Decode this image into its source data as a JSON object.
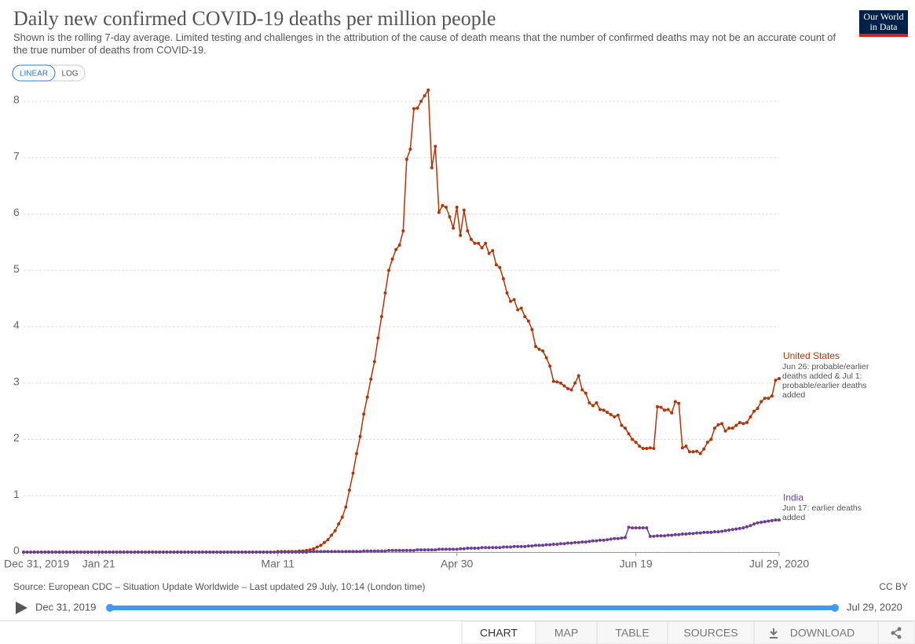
{
  "chart_data": {
    "type": "line",
    "title": "Daily new confirmed COVID-19 deaths per million people",
    "subtitle": "Shown is the rolling 7-day average. Limited testing and challenges in the attribution of the cause of death means that the number of confirmed deaths may not be an accurate count of the true number of deaths from COVID-19.",
    "source": "Source: European CDC – Situation Update Worldwide – Last updated 29 July, 10:14 (London time)",
    "license": "CC BY",
    "scale_buttons": [
      "LINEAR",
      "LOG"
    ],
    "log_scale": false,
    "grid": true,
    "x": [
      "2019-12-31",
      "2020-01-01",
      "2020-01-02",
      "2020-01-03",
      "2020-01-04",
      "2020-01-05",
      "2020-01-06",
      "2020-01-07",
      "2020-01-08",
      "2020-01-09",
      "2020-01-10",
      "2020-01-11",
      "2020-01-12",
      "2020-01-13",
      "2020-01-14",
      "2020-01-15",
      "2020-01-16",
      "2020-01-17",
      "2020-01-18",
      "2020-01-19",
      "2020-01-20",
      "2020-01-21",
      "2020-01-22",
      "2020-01-23",
      "2020-01-24",
      "2020-01-25",
      "2020-01-26",
      "2020-01-27",
      "2020-01-28",
      "2020-01-29",
      "2020-01-30",
      "2020-01-31",
      "2020-02-01",
      "2020-02-02",
      "2020-02-03",
      "2020-02-04",
      "2020-02-05",
      "2020-02-06",
      "2020-02-07",
      "2020-02-08",
      "2020-02-09",
      "2020-02-10",
      "2020-02-11",
      "2020-02-12",
      "2020-02-13",
      "2020-02-14",
      "2020-02-15",
      "2020-02-16",
      "2020-02-17",
      "2020-02-18",
      "2020-02-19",
      "2020-02-20",
      "2020-02-21",
      "2020-02-22",
      "2020-02-23",
      "2020-02-24",
      "2020-02-25",
      "2020-02-26",
      "2020-02-27",
      "2020-02-28",
      "2020-02-29",
      "2020-03-01",
      "2020-03-02",
      "2020-03-03",
      "2020-03-04",
      "2020-03-05",
      "2020-03-06",
      "2020-03-07",
      "2020-03-08",
      "2020-03-09",
      "2020-03-10",
      "2020-03-11",
      "2020-03-12",
      "2020-03-13",
      "2020-03-14",
      "2020-03-15",
      "2020-03-16",
      "2020-03-17",
      "2020-03-18",
      "2020-03-19",
      "2020-03-20",
      "2020-03-21",
      "2020-03-22",
      "2020-03-23",
      "2020-03-24",
      "2020-03-25",
      "2020-03-26",
      "2020-03-27",
      "2020-03-28",
      "2020-03-29",
      "2020-03-30",
      "2020-03-31",
      "2020-04-01",
      "2020-04-02",
      "2020-04-03",
      "2020-04-04",
      "2020-04-05",
      "2020-04-06",
      "2020-04-07",
      "2020-04-08",
      "2020-04-09",
      "2020-04-10",
      "2020-04-11",
      "2020-04-12",
      "2020-04-13",
      "2020-04-14",
      "2020-04-15",
      "2020-04-16",
      "2020-04-17",
      "2020-04-18",
      "2020-04-19",
      "2020-04-20",
      "2020-04-21",
      "2020-04-22",
      "2020-04-23",
      "2020-04-24",
      "2020-04-25",
      "2020-04-26",
      "2020-04-27",
      "2020-04-28",
      "2020-04-29",
      "2020-04-30",
      "2020-05-01",
      "2020-05-02",
      "2020-05-03",
      "2020-05-04",
      "2020-05-05",
      "2020-05-06",
      "2020-05-07",
      "2020-05-08",
      "2020-05-09",
      "2020-05-10",
      "2020-05-11",
      "2020-05-12",
      "2020-05-13",
      "2020-05-14",
      "2020-05-15",
      "2020-05-16",
      "2020-05-17",
      "2020-05-18",
      "2020-05-19",
      "2020-05-20",
      "2020-05-21",
      "2020-05-22",
      "2020-05-23",
      "2020-05-24",
      "2020-05-25",
      "2020-05-26",
      "2020-05-27",
      "2020-05-28",
      "2020-05-29",
      "2020-05-30",
      "2020-05-31",
      "2020-06-01",
      "2020-06-02",
      "2020-06-03",
      "2020-06-04",
      "2020-06-05",
      "2020-06-06",
      "2020-06-07",
      "2020-06-08",
      "2020-06-09",
      "2020-06-10",
      "2020-06-11",
      "2020-06-12",
      "2020-06-13",
      "2020-06-14",
      "2020-06-15",
      "2020-06-16",
      "2020-06-17",
      "2020-06-18",
      "2020-06-19",
      "2020-06-20",
      "2020-06-21",
      "2020-06-22",
      "2020-06-23",
      "2020-06-24",
      "2020-06-25",
      "2020-06-26",
      "2020-06-27",
      "2020-06-28",
      "2020-06-29",
      "2020-06-30",
      "2020-07-01",
      "2020-07-02",
      "2020-07-03",
      "2020-07-04",
      "2020-07-05",
      "2020-07-06",
      "2020-07-07",
      "2020-07-08",
      "2020-07-09",
      "2020-07-10",
      "2020-07-11",
      "2020-07-12",
      "2020-07-13",
      "2020-07-14",
      "2020-07-15",
      "2020-07-16",
      "2020-07-17",
      "2020-07-18",
      "2020-07-19",
      "2020-07-20",
      "2020-07-21",
      "2020-07-22",
      "2020-07-23",
      "2020-07-24",
      "2020-07-25",
      "2020-07-26",
      "2020-07-27",
      "2020-07-28",
      "2020-07-29"
    ],
    "xlim": [
      "2019-12-31",
      "2020-07-29"
    ],
    "xticks": [
      {
        "value": "2019-12-31",
        "label": "Dec 31, 2019"
      },
      {
        "value": "2020-01-21",
        "label": "Jan 21"
      },
      {
        "value": "2020-03-11",
        "label": "Mar 11"
      },
      {
        "value": "2020-04-30",
        "label": "Apr 30"
      },
      {
        "value": "2020-06-19",
        "label": "Jun 19"
      },
      {
        "value": "2020-07-29",
        "label": "Jul 29, 2020"
      }
    ],
    "ylim": [
      0,
      8
    ],
    "yticks": [
      0,
      1,
      2,
      3,
      4,
      5,
      6,
      7,
      8
    ],
    "series": [
      {
        "name": "United States",
        "color": "#b13507",
        "note": "Jun 26: probable/earlier deaths added & Jul 1: probable/earlier deaths added",
        "values": [
          0,
          0,
          0,
          0,
          0,
          0,
          0,
          0,
          0,
          0,
          0,
          0,
          0,
          0,
          0,
          0,
          0,
          0,
          0,
          0,
          0,
          0,
          0,
          0,
          0,
          0,
          0,
          0,
          0,
          0,
          0,
          0,
          0,
          0,
          0,
          0,
          0,
          0,
          0,
          0,
          0,
          0,
          0,
          0,
          0,
          0,
          0,
          0,
          0,
          0,
          0,
          0,
          0,
          0,
          0,
          0,
          0,
          0,
          0,
          0,
          0,
          0,
          0,
          0,
          0,
          0,
          0,
          0,
          0,
          0,
          0,
          0.01,
          0.01,
          0.01,
          0.01,
          0.01,
          0.01,
          0.02,
          0.02,
          0.03,
          0.04,
          0.06,
          0.09,
          0.12,
          0.17,
          0.22,
          0.3,
          0.38,
          0.5,
          0.62,
          0.8,
          1.1,
          1.4,
          1.75,
          2.05,
          2.45,
          2.75,
          3.07,
          3.38,
          3.8,
          4.18,
          4.6,
          5.0,
          5.2,
          5.37,
          5.45,
          5.7,
          6.97,
          7.15,
          7.87,
          7.88,
          8.0,
          8.1,
          8.2,
          6.82,
          7.2,
          6.03,
          6.15,
          6.12,
          5.95,
          5.75,
          6.12,
          5.62,
          6.07,
          5.7,
          5.55,
          5.48,
          5.48,
          5.4,
          5.48,
          5.3,
          5.35,
          5.1,
          5.05,
          4.85,
          4.6,
          4.45,
          4.48,
          4.3,
          4.33,
          4.18,
          4.1,
          3.95,
          3.65,
          3.6,
          3.57,
          3.45,
          3.3,
          3.03,
          3.02,
          3.0,
          2.95,
          2.9,
          2.88,
          3.0,
          3.13,
          2.88,
          2.82,
          2.65,
          2.6,
          2.65,
          2.53,
          2.52,
          2.48,
          2.44,
          2.4,
          2.43,
          2.25,
          2.2,
          2.1,
          2.0,
          1.95,
          1.88,
          1.84,
          1.84,
          1.85,
          1.84,
          2.58,
          2.57,
          2.52,
          2.53,
          2.47,
          2.67,
          2.64,
          1.85,
          1.88,
          1.78,
          1.78,
          1.79,
          1.75,
          1.83,
          1.95,
          2.0,
          2.2,
          2.26,
          2.28,
          2.15,
          2.2,
          2.2,
          2.25,
          2.3,
          2.28,
          2.3,
          2.4,
          2.5,
          2.55,
          2.67,
          2.73,
          2.73,
          2.77,
          3.05,
          3.08
        ]
      },
      {
        "name": "India",
        "color": "#6d3e91",
        "note": "Jun 17: earlier deaths added",
        "values": [
          0,
          0,
          0,
          0,
          0,
          0,
          0,
          0,
          0,
          0,
          0,
          0,
          0,
          0,
          0,
          0,
          0,
          0,
          0,
          0,
          0,
          0,
          0,
          0,
          0,
          0,
          0,
          0,
          0,
          0,
          0,
          0,
          0,
          0,
          0,
          0,
          0,
          0,
          0,
          0,
          0,
          0,
          0,
          0,
          0,
          0,
          0,
          0,
          0,
          0,
          0,
          0,
          0,
          0,
          0,
          0,
          0,
          0,
          0,
          0,
          0,
          0,
          0,
          0,
          0,
          0,
          0,
          0,
          0,
          0,
          0,
          0,
          0,
          0,
          0,
          0,
          0,
          0,
          0,
          0,
          0.01,
          0.01,
          0.01,
          0.01,
          0.01,
          0.01,
          0.01,
          0.01,
          0.01,
          0.01,
          0.01,
          0.01,
          0.01,
          0.01,
          0.01,
          0.02,
          0.02,
          0.02,
          0.02,
          0.02,
          0.02,
          0.02,
          0.03,
          0.03,
          0.03,
          0.03,
          0.03,
          0.03,
          0.03,
          0.03,
          0.04,
          0.04,
          0.04,
          0.04,
          0.04,
          0.04,
          0.05,
          0.05,
          0.05,
          0.05,
          0.05,
          0.05,
          0.06,
          0.06,
          0.07,
          0.07,
          0.07,
          0.07,
          0.08,
          0.08,
          0.08,
          0.08,
          0.08,
          0.08,
          0.09,
          0.09,
          0.09,
          0.1,
          0.1,
          0.1,
          0.1,
          0.11,
          0.11,
          0.12,
          0.12,
          0.12,
          0.13,
          0.13,
          0.14,
          0.14,
          0.15,
          0.15,
          0.16,
          0.16,
          0.17,
          0.17,
          0.18,
          0.18,
          0.19,
          0.2,
          0.2,
          0.21,
          0.21,
          0.22,
          0.23,
          0.24,
          0.24,
          0.25,
          0.26,
          0.44,
          0.43,
          0.43,
          0.43,
          0.43,
          0.43,
          0.28,
          0.28,
          0.29,
          0.29,
          0.29,
          0.3,
          0.3,
          0.31,
          0.31,
          0.32,
          0.32,
          0.33,
          0.33,
          0.34,
          0.34,
          0.35,
          0.35,
          0.35,
          0.36,
          0.36,
          0.37,
          0.38,
          0.39,
          0.4,
          0.41,
          0.42,
          0.43,
          0.45,
          0.47,
          0.5,
          0.52,
          0.53,
          0.54,
          0.55,
          0.56,
          0.57,
          0.57
        ]
      }
    ]
  },
  "ui": {
    "logo": [
      "Our World",
      "in Data"
    ],
    "timeline": {
      "start": "Dec 31, 2019",
      "end": "Jul 29, 2020"
    },
    "tabs": [
      "CHART",
      "MAP",
      "TABLE",
      "SOURCES",
      "DOWNLOAD"
    ]
  }
}
